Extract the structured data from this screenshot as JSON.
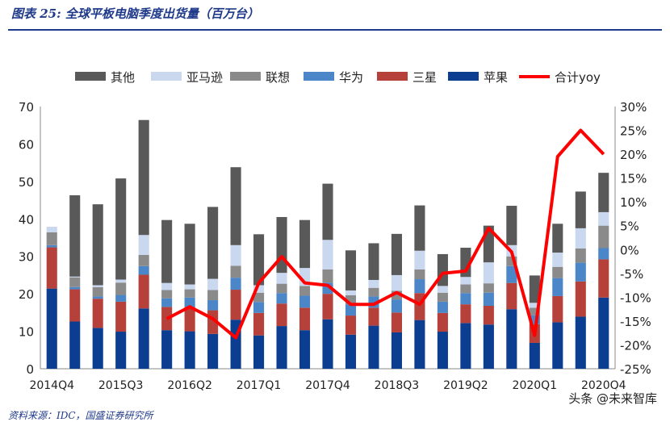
{
  "title": "图表 25:  全球平板电脑季度出货量（百万台）",
  "source": "资料来源：IDC，国盛证券研究所",
  "watermark": "头条 @未来智库",
  "chart_data": {
    "type": "bar",
    "stacked": true,
    "title": "",
    "categories": [
      "2014Q4",
      "2015Q1",
      "2015Q2",
      "2015Q3",
      "2015Q4",
      "2016Q1",
      "2016Q2",
      "2016Q3",
      "2016Q4",
      "2017Q1",
      "2017Q2",
      "2017Q3",
      "2017Q4",
      "2018Q1",
      "2018Q2",
      "2018Q3",
      "2018Q4",
      "2019Q1",
      "2019Q2",
      "2019Q3",
      "2019Q4",
      "2020Q1",
      "2020Q2",
      "2020Q3",
      "2020Q4"
    ],
    "xtick_labels": [
      "2014Q4",
      "2015Q3",
      "2016Q2",
      "2017Q1",
      "2017Q4",
      "2018Q3",
      "2019Q2",
      "2020Q1",
      "2020Q4"
    ],
    "ylim": [
      0,
      70
    ],
    "y_ticks": [
      0,
      10,
      20,
      30,
      40,
      50,
      60,
      70
    ],
    "y2lim": [
      -25,
      30
    ],
    "y2_ticks": [
      "-25%",
      "-20%",
      "-15%",
      "-10%",
      "-5%",
      "0%",
      "5%",
      "10%",
      "15%",
      "20%",
      "25%",
      "30%"
    ],
    "legend_position": "top",
    "series": [
      {
        "name": "苹果",
        "color": "#0b3d91",
        "values": [
          21.4,
          12.6,
          10.9,
          9.9,
          16.1,
          10.3,
          10.0,
          9.3,
          13.1,
          8.9,
          11.4,
          10.3,
          13.2,
          9.1,
          11.5,
          9.7,
          13.0,
          9.9,
          12.2,
          11.8,
          15.9,
          6.9,
          12.4,
          13.9,
          19.0
        ]
      },
      {
        "name": "三星",
        "color": "#b5413a",
        "values": [
          11.0,
          8.6,
          7.8,
          8.0,
          9.0,
          6.2,
          6.5,
          6.3,
          8.0,
          6.0,
          6.0,
          6.0,
          6.8,
          5.1,
          4.8,
          5.3,
          7.2,
          5.0,
          5.0,
          5.0,
          7.0,
          5.0,
          7.0,
          9.4,
          10.2
        ]
      },
      {
        "name": "华为",
        "color": "#4a86c8",
        "values": [
          0.6,
          0.6,
          0.6,
          1.8,
          2.3,
          2.3,
          2.5,
          2.7,
          3.2,
          2.9,
          2.8,
          3.2,
          3.0,
          3.0,
          3.0,
          3.5,
          3.7,
          3.0,
          3.0,
          3.5,
          4.5,
          2.4,
          4.8,
          5.0,
          3.0
        ]
      },
      {
        "name": "联想",
        "color": "#8a8a8a",
        "values": [
          3.4,
          2.6,
          2.5,
          3.3,
          3.0,
          2.2,
          2.2,
          2.7,
          3.2,
          2.5,
          2.5,
          2.6,
          3.5,
          2.4,
          2.3,
          2.3,
          2.6,
          2.4,
          2.3,
          2.5,
          2.6,
          2.0,
          3.0,
          3.8,
          6.0
        ]
      },
      {
        "name": "亚马逊",
        "color": "#c9d7ef",
        "values": [
          1.5,
          0.2,
          0.5,
          0.8,
          5.3,
          1.9,
          1.3,
          3.0,
          5.5,
          2.0,
          2.9,
          4.8,
          7.9,
          1.3,
          2.1,
          4.2,
          5.0,
          1.8,
          2.0,
          5.6,
          3.0,
          1.3,
          3.8,
          5.4,
          3.6
        ]
      },
      {
        "name": "其他",
        "color": "#595959",
        "values": [
          0.0,
          21.7,
          21.6,
          27.0,
          30.7,
          16.8,
          16.2,
          19.2,
          20.8,
          13.6,
          14.9,
          12.8,
          15.0,
          10.7,
          9.8,
          11.0,
          12.1,
          8.5,
          7.8,
          9.8,
          10.5,
          7.3,
          7.7,
          9.8,
          10.5
        ]
      }
    ],
    "line_series": {
      "name": "合计yoy",
      "color": "#ff0000",
      "axis": "right",
      "x_start_index": 5,
      "values": [
        -14.5,
        -12.0,
        -14.5,
        -18.5,
        -7.0,
        -1.5,
        -7.0,
        -7.5,
        -11.5,
        -11.5,
        -9.0,
        -11.5,
        -5.0,
        -4.5,
        4.5,
        -0.5,
        -18.0,
        19.5,
        25.0,
        20.0
      ]
    }
  }
}
